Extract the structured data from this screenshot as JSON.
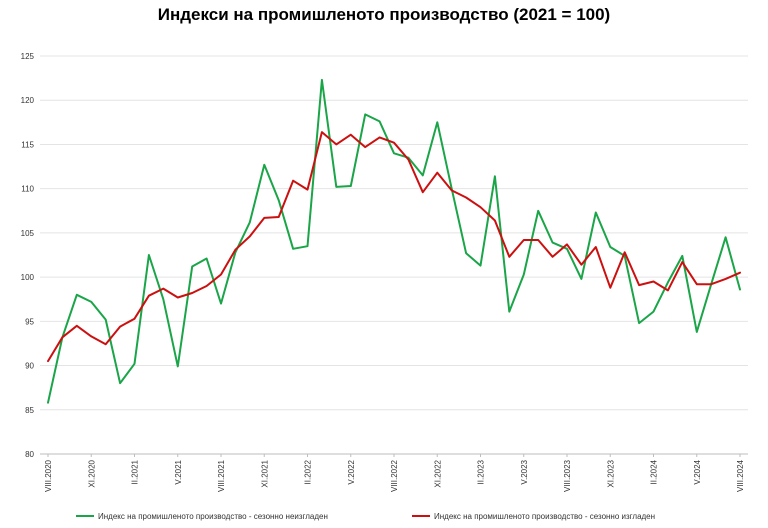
{
  "chart_data": {
    "type": "line",
    "title": "Индекси на промишленото производство (2021 = 100)",
    "xlabel": "",
    "ylabel": "",
    "ylim": [
      80,
      125
    ],
    "yticks": [
      80,
      85,
      90,
      95,
      100,
      105,
      110,
      115,
      120,
      125
    ],
    "grid": true,
    "legend_position": "bottom",
    "x": [
      "VIII.2020",
      "IX.2020",
      "X.2020",
      "XI.2020",
      "XII.2020",
      "I.2021",
      "II.2021",
      "III.2021",
      "IV.2021",
      "V.2021",
      "VI.2021",
      "VII.2021",
      "VIII.2021",
      "IX.2021",
      "X.2021",
      "XI.2021",
      "XII.2021",
      "I.2022",
      "II.2022",
      "III.2022",
      "IV.2022",
      "V.2022",
      "VI.2022",
      "VII.2022",
      "VIII.2022",
      "IX.2022",
      "X.2022",
      "XI.2022",
      "XII.2022",
      "I.2023",
      "II.2023",
      "III.2023",
      "IV.2023",
      "V.2023",
      "VI.2023",
      "VII.2023",
      "VIII.2023",
      "IX.2023",
      "X.2023",
      "XI.2023",
      "XII.2023",
      "I.2024",
      "II.2024",
      "III.2024",
      "IV.2024",
      "V.2024",
      "VI.2024",
      "VII.2024",
      "VIII.2024"
    ],
    "x_tick_labels": [
      "VIII.2020",
      "XI.2020",
      "II.2021",
      "V.2021",
      "VIII.2021",
      "XI.2021",
      "II.2022",
      "V.2022",
      "VIII.2022",
      "XI.2022",
      "II.2023",
      "V.2023",
      "VIII.2023",
      "XI.2023",
      "II.2024",
      "V.2024",
      "VIII.2024"
    ],
    "series": [
      {
        "name": "Индекс на промишленото производство - сезонно  неизгладен",
        "color": "#1aa548",
        "values": [
          85.8,
          93.2,
          98.0,
          97.2,
          95.2,
          88.0,
          90.2,
          102.5,
          97.5,
          89.9,
          101.2,
          102.1,
          97.0,
          102.8,
          106.2,
          112.7,
          108.7,
          103.2,
          103.5,
          122.3,
          110.2,
          110.3,
          118.4,
          117.6,
          114.0,
          113.5,
          111.5,
          117.5,
          110.0,
          102.7,
          101.3,
          111.4,
          96.1,
          100.3,
          107.5,
          103.9,
          103.2,
          99.8,
          107.3,
          103.4,
          102.4,
          94.8,
          96.1,
          99.4,
          102.4,
          93.8,
          99.2,
          104.5,
          98.6
        ]
      },
      {
        "name": "Индекс на промишленото производство - сезонно изгладен",
        "color": "#cc1010",
        "values": [
          90.5,
          93.2,
          94.5,
          93.3,
          92.4,
          94.4,
          95.3,
          97.9,
          98.7,
          97.7,
          98.2,
          99.0,
          100.3,
          103.1,
          104.6,
          106.7,
          106.8,
          110.9,
          109.9,
          116.4,
          115.0,
          116.1,
          114.7,
          115.8,
          115.2,
          113.3,
          109.6,
          111.8,
          109.8,
          109.0,
          107.9,
          106.4,
          102.3,
          104.2,
          104.2,
          102.3,
          103.7,
          101.4,
          103.4,
          98.8,
          102.8,
          99.1,
          99.5,
          98.5,
          101.7,
          99.2,
          99.2,
          99.8,
          100.5
        ]
      }
    ]
  }
}
